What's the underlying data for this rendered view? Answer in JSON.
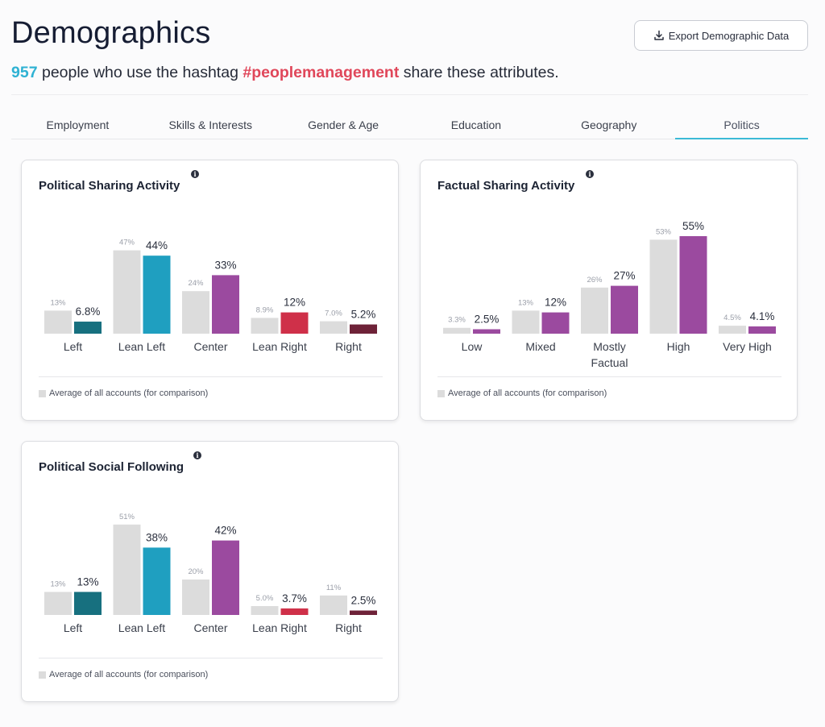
{
  "header": {
    "title": "Demographics",
    "export_label": "Export Demographic Data",
    "subtitle_count": "957",
    "subtitle_pre": "people who use the hashtag",
    "subtitle_tag": "#peoplemanagement",
    "subtitle_post": "share these attributes."
  },
  "tabs": [
    {
      "label": "Employment",
      "active": false
    },
    {
      "label": "Skills & Interests",
      "active": false
    },
    {
      "label": "Gender & Age",
      "active": false
    },
    {
      "label": "Education",
      "active": false
    },
    {
      "label": "Geography",
      "active": false
    },
    {
      "label": "Politics",
      "active": true
    }
  ],
  "legend_label": "Average of all accounts (for comparison)",
  "colors": {
    "average": "#dcdcdc",
    "left": "#17707f",
    "lean_left": "#1f9fc0",
    "center": "#9b4a9f",
    "lean_right": "#cf3049",
    "right": "#6e2238",
    "factual": "#9b4a9f",
    "accent_tab": "#3bbad6"
  },
  "chart_data": [
    {
      "id": "political-sharing",
      "type": "bar",
      "title": "Political Sharing Activity",
      "categories": [
        "Left",
        "Lean Left",
        "Center",
        "Lean Right",
        "Right"
      ],
      "series": [
        {
          "name": "Average of all accounts (for comparison)",
          "values": [
            13,
            47,
            24,
            8.9,
            7.0
          ],
          "labels": [
            "13%",
            "47%",
            "24%",
            "8.9%",
            "7.0%"
          ]
        },
        {
          "values": [
            6.8,
            44,
            33,
            12,
            5.2
          ],
          "labels": [
            "6.8%",
            "44%",
            "33%",
            "12%",
            "5.2%"
          ]
        }
      ],
      "bar_colors": [
        "#17707f",
        "#1f9fc0",
        "#9b4a9f",
        "#cf3049",
        "#6e2238"
      ]
    },
    {
      "id": "factual-sharing",
      "type": "bar",
      "title": "Factual Sharing Activity",
      "categories": [
        "Low",
        "Mixed",
        "Mostly Factual",
        "High",
        "Very High"
      ],
      "series": [
        {
          "name": "Average of all accounts (for comparison)",
          "values": [
            3.3,
            13,
            26,
            53,
            4.5
          ],
          "labels": [
            "3.3%",
            "13%",
            "26%",
            "53%",
            "4.5%"
          ]
        },
        {
          "values": [
            2.5,
            12,
            27,
            55,
            4.1
          ],
          "labels": [
            "2.5%",
            "12%",
            "27%",
            "55%",
            "4.1%"
          ]
        }
      ],
      "bar_colors": [
        "#9b4a9f",
        "#9b4a9f",
        "#9b4a9f",
        "#9b4a9f",
        "#9b4a9f"
      ]
    },
    {
      "id": "political-following",
      "type": "bar",
      "title": "Political Social Following",
      "categories": [
        "Left",
        "Lean Left",
        "Center",
        "Lean Right",
        "Right"
      ],
      "series": [
        {
          "name": "Average of all accounts (for comparison)",
          "values": [
            13,
            51,
            20,
            5.0,
            11
          ],
          "labels": [
            "13%",
            "51%",
            "20%",
            "5.0%",
            "11%"
          ]
        },
        {
          "values": [
            13,
            38,
            42,
            3.7,
            2.5
          ],
          "labels": [
            "13%",
            "38%",
            "42%",
            "3.7%",
            "2.5%"
          ]
        }
      ],
      "bar_colors": [
        "#17707f",
        "#1f9fc0",
        "#9b4a9f",
        "#cf3049",
        "#6e2238"
      ]
    }
  ]
}
